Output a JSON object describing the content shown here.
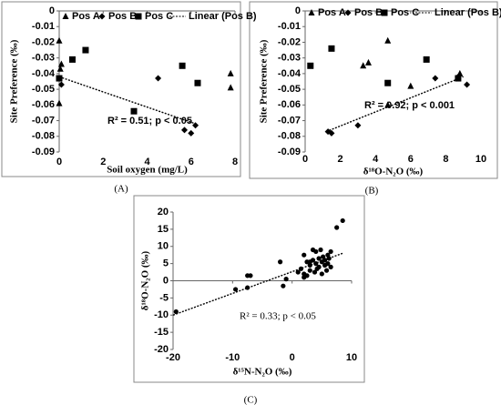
{
  "chart_data": [
    {
      "type": "scatter",
      "caption": "(A)",
      "x_label": "Soil oxygen (mg/L)",
      "y_label": "Site Preference (‰)",
      "xlim": [
        0,
        8
      ],
      "ylim": [
        -0.09,
        0
      ],
      "xticks": [
        0,
        2,
        4,
        6,
        8
      ],
      "yticks": [
        0,
        -0.01,
        -0.02,
        -0.03,
        -0.04,
        -0.05,
        -0.06,
        -0.07,
        -0.08,
        -0.09
      ],
      "series": [
        {
          "name": "Pos A",
          "marker": "triangle",
          "color": "#000000",
          "x": [
            0,
            0.1,
            0.05,
            0,
            7.8,
            7.8
          ],
          "values": [
            -0.019,
            -0.034,
            -0.037,
            -0.059,
            -0.04,
            -0.049
          ]
        },
        {
          "name": "Pos B",
          "marker": "diamond",
          "color": "#000000",
          "x": [
            0.1,
            4.5,
            5.7,
            6.0,
            6.2
          ],
          "values": [
            -0.047,
            -0.043,
            -0.076,
            -0.078,
            -0.073
          ]
        },
        {
          "name": "Pos C",
          "marker": "square",
          "color": "#000000",
          "x": [
            0,
            0.6,
            1.2,
            3.4,
            5.6,
            6.3
          ],
          "values": [
            -0.043,
            -0.031,
            -0.025,
            -0.064,
            -0.035,
            -0.046
          ]
        }
      ],
      "trendline": {
        "name": "Linear (Pos B)",
        "x": [
          0,
          6.2
        ],
        "values": [
          -0.042,
          -0.072
        ]
      },
      "annotation": "R² = 0.51; p < 0.05"
    },
    {
      "type": "scatter",
      "caption": "(B)",
      "x_label": "δ¹⁸O-N₂O (‰)",
      "y_label": "Site Preference (‰)",
      "xlim": [
        0,
        10
      ],
      "ylim": [
        -0.09,
        0
      ],
      "xticks": [
        0,
        2,
        4,
        6,
        8,
        10
      ],
      "yticks": [
        0,
        -0.01,
        -0.02,
        -0.03,
        -0.04,
        -0.05,
        -0.06,
        -0.07,
        -0.08,
        -0.09
      ],
      "series": [
        {
          "name": "Pos A",
          "marker": "triangle",
          "color": "#000000",
          "x": [
            4.7,
            3.6,
            3.3,
            4.7,
            6.0,
            8.8
          ],
          "values": [
            -0.019,
            -0.033,
            -0.035,
            -0.06,
            -0.048,
            -0.04
          ]
        },
        {
          "name": "Pos B",
          "marker": "diamond",
          "color": "#000000",
          "x": [
            1.3,
            1.5,
            3.0,
            7.4,
            8.7,
            9.2
          ],
          "values": [
            -0.077,
            -0.078,
            -0.073,
            -0.043,
            -0.042,
            -0.047
          ]
        },
        {
          "name": "Pos C",
          "marker": "square",
          "color": "#000000",
          "x": [
            0.3,
            1.5,
            4.7,
            6.9,
            8.7
          ],
          "values": [
            -0.035,
            -0.024,
            -0.046,
            -0.031,
            -0.043
          ]
        }
      ],
      "trendline": {
        "name": "Linear (Pos B)",
        "x": [
          1.2,
          9.0
        ],
        "values": [
          -0.077,
          -0.042
        ]
      },
      "annotation": "R² = 0.92; p < 0.001"
    },
    {
      "type": "scatter",
      "caption": "(C)",
      "x_label": "δ¹⁵N-N₂O (‰)",
      "y_label": "δ¹⁸O-N₂O (‰)",
      "xlim": [
        -20,
        10
      ],
      "ylim": [
        -20,
        20
      ],
      "xticks": [
        -20,
        -10,
        0,
        10
      ],
      "yticks": [
        20,
        15,
        10,
        5,
        0,
        -5,
        -10,
        -15,
        -20
      ],
      "series": [
        {
          "marker": "circle",
          "color": "#000000",
          "x": [
            -19.5,
            -9.5,
            -7.5,
            -7.0,
            -7.5,
            -2.0,
            -1.5,
            -1.0,
            1.0,
            1.5,
            2.0,
            2.0,
            2.5,
            2.5,
            3.0,
            3.0,
            3.5,
            3.5,
            3.8,
            4.0,
            4.0,
            4.2,
            4.5,
            4.5,
            4.8,
            5.0,
            5.0,
            5.2,
            5.5,
            5.5,
            5.8,
            6.0,
            6.0,
            6.2,
            6.5,
            6.5,
            3.0,
            2.0,
            7.5,
            8.5
          ],
          "values": [
            -9,
            -2.5,
            1.5,
            1.5,
            -2.0,
            5.5,
            -1.5,
            0.5,
            2.5,
            3.5,
            2.0,
            7.5,
            5.5,
            1.5,
            4.5,
            3.0,
            9.0,
            6.0,
            2.5,
            5.0,
            8.5,
            3.5,
            6.5,
            4.0,
            9.0,
            5.5,
            2.0,
            7.0,
            4.5,
            6.0,
            3.0,
            5.0,
            7.5,
            6.5,
            4.0,
            8.5,
            5.5,
            1.0,
            15.5,
            17.5
          ]
        }
      ],
      "trendline": {
        "x": [
          -20,
          8.5
        ],
        "values": [
          -10,
          8
        ]
      },
      "annotation": "R² = 0.33; p < 0.05"
    }
  ]
}
